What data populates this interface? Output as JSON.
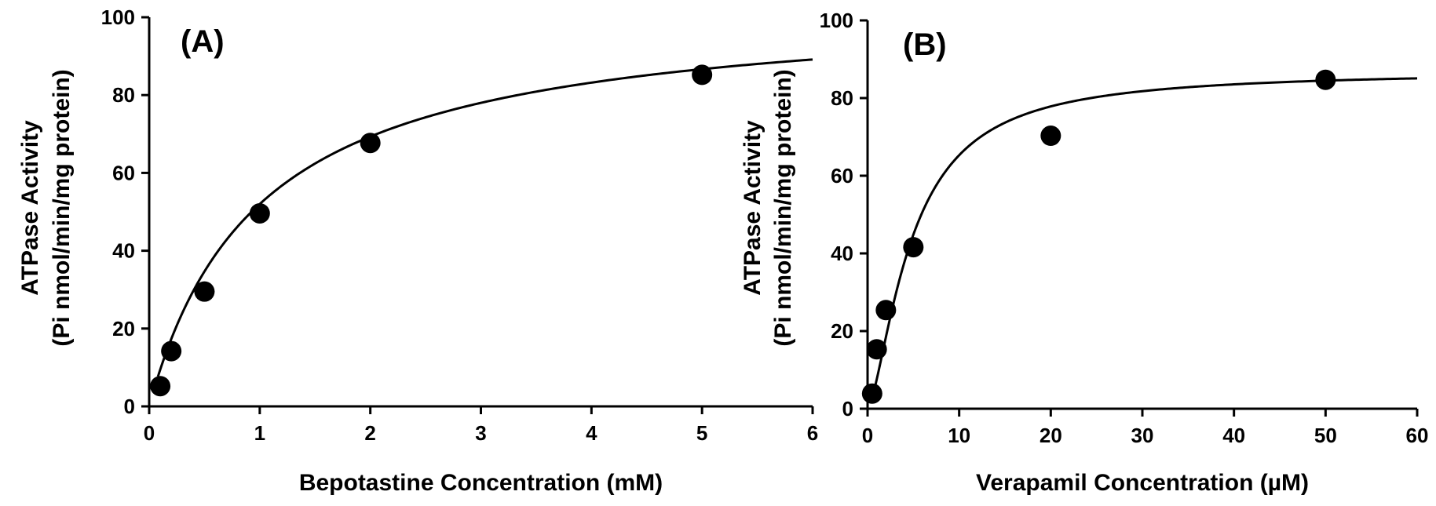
{
  "chart_data": [
    {
      "panel": "(A)",
      "type": "scatter",
      "title": "",
      "xlabel": "Bepotastine Concentration (mM)",
      "ylabel_line1": "ATPase Activity",
      "ylabel_line2": "(Pi nmol/min/mg protein)",
      "xlim": [
        0,
        6
      ],
      "ylim": [
        0,
        100
      ],
      "xticks": [
        0,
        1,
        2,
        3,
        4,
        5,
        6
      ],
      "yticks": [
        0,
        20,
        40,
        60,
        80,
        100
      ],
      "grid": false,
      "legend": "none",
      "series": [
        {
          "marker_color": "#000000",
          "points": [
            {
              "x": 0.1,
              "y": 5.2
            },
            {
              "x": 0.2,
              "y": 14.2
            },
            {
              "x": 0.5,
              "y": 29.5
            },
            {
              "x": 1,
              "y": 49.6
            },
            {
              "x": 2,
              "y": 67.7
            },
            {
              "x": 5,
              "y": 85.2
            }
          ]
        }
      ],
      "fit_curve": {
        "type": "michaelis-menten",
        "vmax": 104,
        "km": 1.0,
        "x_start": 0.08,
        "x_end": 6,
        "color": "#000000"
      }
    },
    {
      "panel": "(B)",
      "type": "scatter",
      "title": "",
      "xlabel": "Verapamil Concentration (µM)",
      "ylabel_line1": "ATPase Activity",
      "ylabel_line2": "(Pi nmol/min/mg protein)",
      "xlim": [
        0,
        60
      ],
      "ylim": [
        0,
        100
      ],
      "xticks": [
        0,
        10,
        20,
        30,
        40,
        50,
        60
      ],
      "yticks": [
        0,
        20,
        40,
        60,
        80,
        100
      ],
      "grid": false,
      "legend": "none",
      "series": [
        {
          "marker_color": "#000000",
          "points": [
            {
              "x": 0.5,
              "y": 3.9
            },
            {
              "x": 1,
              "y": 15.3
            },
            {
              "x": 2,
              "y": 25.4
            },
            {
              "x": 5,
              "y": 41.6
            },
            {
              "x": 20,
              "y": 70.3
            },
            {
              "x": 50,
              "y": 84.7
            }
          ]
        }
      ],
      "fit_curve": {
        "type": "hill",
        "vmax": 87,
        "km": 4.8,
        "n": 1.5,
        "x_start": 0.4,
        "x_end": 60,
        "color": "#000000"
      }
    }
  ]
}
